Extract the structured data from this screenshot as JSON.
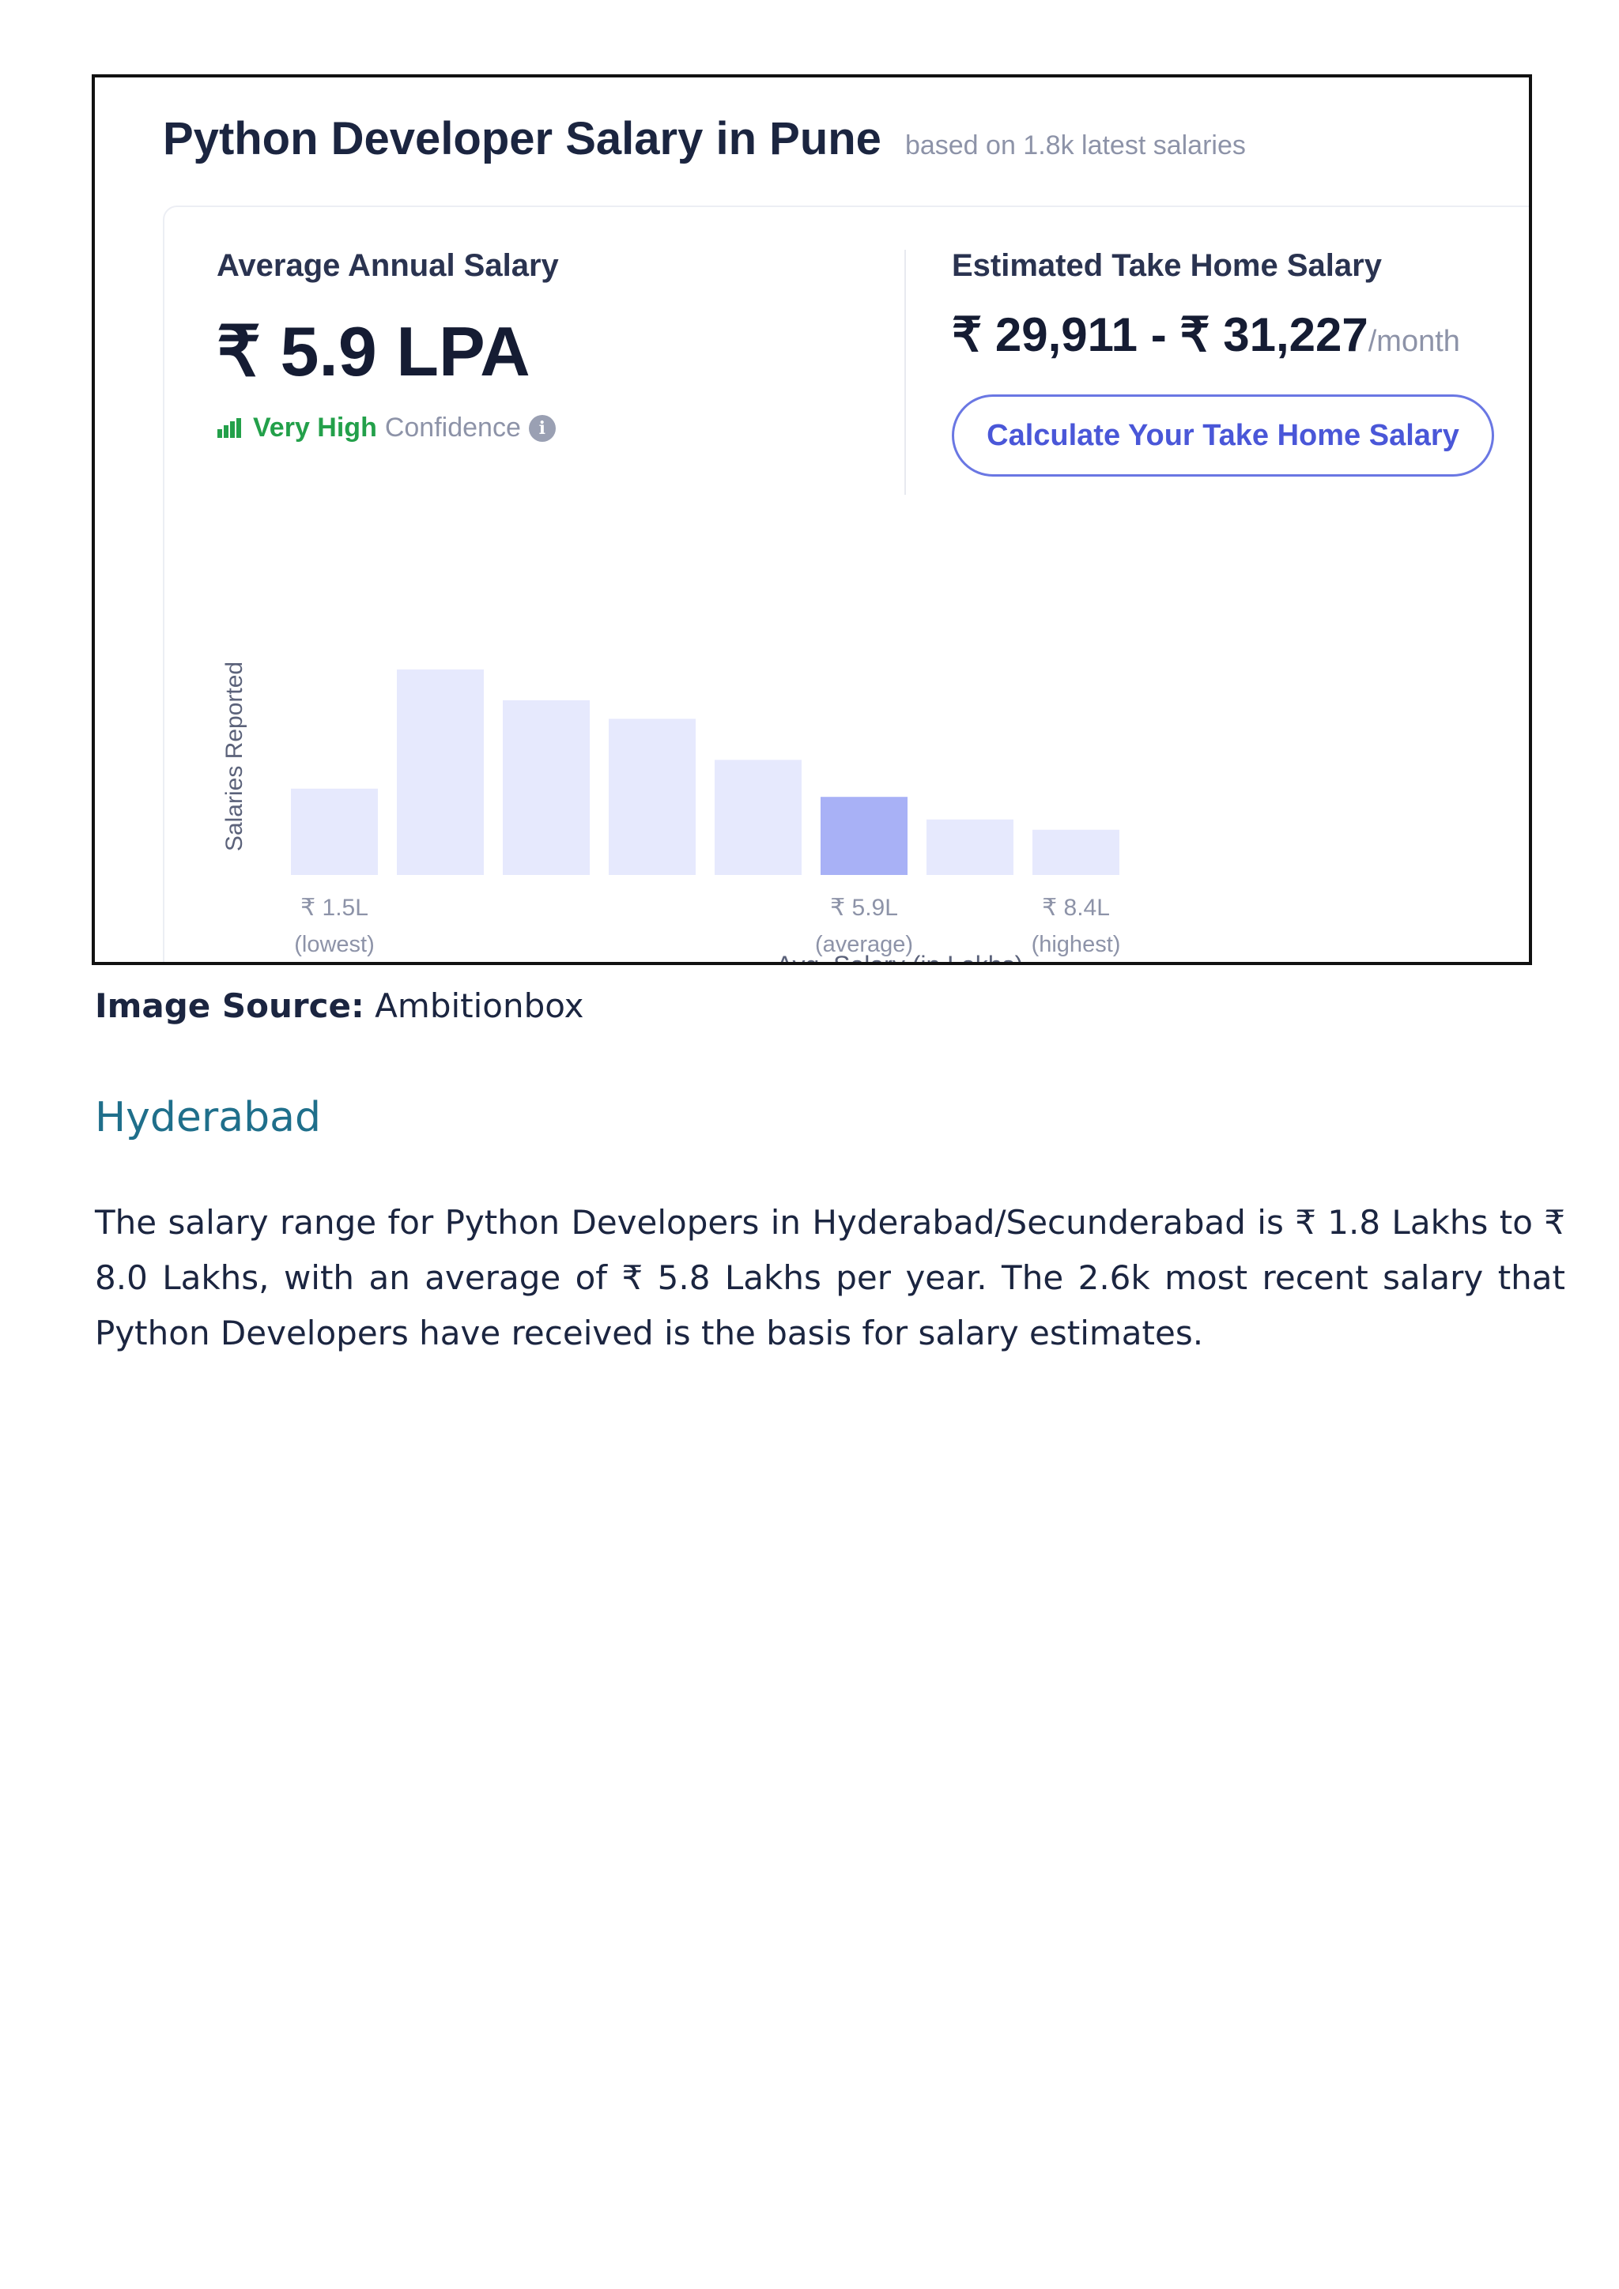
{
  "figure": {
    "title": "Python Developer Salary in Pune",
    "subtitle": "based on 1.8k latest salaries",
    "average_label": "Average Annual Salary",
    "average_value": "₹ 5.9 LPA",
    "confidence_strong": "Very High",
    "confidence_rest": "Confidence",
    "info_icon": "i",
    "take_home_label": "Estimated Take Home Salary",
    "take_home_value": "₹ 29,911 - ₹ 31,227",
    "take_home_unit": "/month",
    "calc_button_label": "Calculate Your Take Home Salary",
    "colors": {
      "bar": "#e6e9fd",
      "bar_highlight": "#a8b1f6",
      "confidence": "#23a04a",
      "button": "#4a57d8"
    }
  },
  "chart_data": {
    "type": "bar",
    "ylabel": "Salaries Reported",
    "xlabel": "Avg. Salary (in Lakhs)",
    "values": [
      42,
      100,
      85,
      76,
      56,
      38,
      27,
      22
    ],
    "highlight_index": 5,
    "tick_labels": [
      {
        "index": 0,
        "value": "₹ 1.5L",
        "note": "(lowest)"
      },
      {
        "index": 5,
        "value": "₹ 5.9L",
        "note": "(average)"
      },
      {
        "index": 7,
        "value": "₹ 8.4L",
        "note": "(highest)"
      }
    ],
    "grid": false
  },
  "source": {
    "label": "Image Source:",
    "value": "Ambitionbox"
  },
  "section": {
    "heading": "Hyderabad",
    "paragraph": "The salary range for Python Developers in Hyderabad/Secunderabad is ₹ 1.8 Lakhs to ₹ 8.0 Lakhs, with an average of ₹ 5.8 Lakhs per year. The 2.6k most recent salary that Python Developers have received is the basis for salary estimates."
  }
}
